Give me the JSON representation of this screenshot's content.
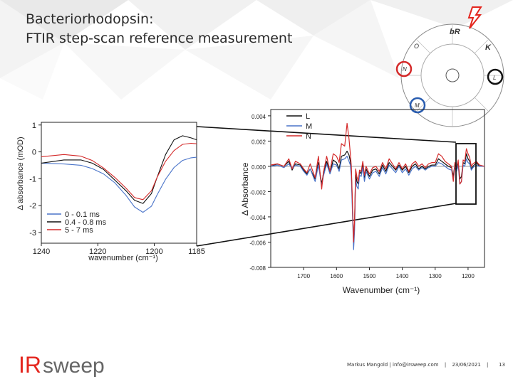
{
  "slide": {
    "title_line1": "Bacteriorhodopsin:",
    "title_line2": "FTIR step-scan reference measurement"
  },
  "footer": {
    "author": "Markus Mangold | info@irsweep.com",
    "sep1": "|",
    "date": "23/06/2021",
    "sep2": "|",
    "page": "13"
  },
  "logo": {
    "ir": "IR",
    "sweep": "sweep",
    "brand_color": "#e4261e"
  },
  "photocycle": {
    "labels": [
      "bR",
      "K",
      "L",
      "M",
      "N",
      "O"
    ],
    "highlight_colors": {
      "N": "#d42a2a",
      "L": "#111111",
      "M": "#2a5db0"
    }
  },
  "colors": {
    "red": "#d42a2a",
    "blue": "#4a74c9",
    "black": "#111111"
  },
  "chart_data": [
    {
      "type": "line",
      "xlabel": "wavenumber (cm⁻¹)",
      "ylabel": "Δ absorbance (mOD)",
      "xlim": [
        1240,
        1185
      ],
      "ylim": [
        -3.4,
        1.1
      ],
      "x_ticks": [
        "1240",
        "1220",
        "1200",
        "1185"
      ],
      "y_ticks": [
        "1",
        "0",
        "-1",
        "-2",
        "-3"
      ],
      "legend_position": "bottom-left",
      "series": [
        {
          "name": "0 - 0.1 ms",
          "color": "#4a74c9",
          "x": [
            1240,
            1232,
            1226,
            1222,
            1218,
            1214,
            1210,
            1207,
            1204,
            1201,
            1199,
            1196,
            1193,
            1190,
            1187,
            1185
          ],
          "y": [
            -0.42,
            -0.45,
            -0.5,
            -0.62,
            -0.82,
            -1.15,
            -1.62,
            -2.05,
            -2.25,
            -2.02,
            -1.6,
            -1.02,
            -0.58,
            -0.32,
            -0.22,
            -0.2
          ]
        },
        {
          "name": "0.4 - 0.8 ms",
          "color": "#111111",
          "x": [
            1240,
            1232,
            1226,
            1222,
            1218,
            1214,
            1210,
            1207,
            1204,
            1201,
            1199,
            1196,
            1193,
            1190,
            1187,
            1185
          ],
          "y": [
            -0.42,
            -0.3,
            -0.3,
            -0.42,
            -0.65,
            -1.05,
            -1.45,
            -1.8,
            -1.92,
            -1.55,
            -0.95,
            -0.1,
            0.45,
            0.6,
            0.52,
            0.45
          ]
        },
        {
          "name": "5 - 7 ms",
          "color": "#d42a2a",
          "x": [
            1240,
            1232,
            1226,
            1222,
            1218,
            1214,
            1210,
            1207,
            1204,
            1201,
            1199,
            1196,
            1193,
            1190,
            1187,
            1185
          ],
          "y": [
            -0.18,
            -0.1,
            -0.16,
            -0.32,
            -0.6,
            -0.95,
            -1.35,
            -1.7,
            -1.78,
            -1.45,
            -0.95,
            -0.35,
            0.05,
            0.28,
            0.32,
            0.3
          ]
        }
      ]
    },
    {
      "type": "line",
      "xlabel": "Wavenumber (cm⁻¹)",
      "ylabel": "Δ  Absorbance",
      "xlim": [
        1800,
        1150
      ],
      "ylim": [
        -0.008,
        0.0045
      ],
      "x_ticks": [
        "1700",
        "1600",
        "1500",
        "1400",
        "1300",
        "1200"
      ],
      "y_ticks": [
        "0.004",
        "0.002",
        "0.000",
        "-0.002",
        "-0.004",
        "-0.006",
        "-0.008"
      ],
      "legend_position": "top-left",
      "series": [
        {
          "name": "L",
          "color": "#111111",
          "x": [
            1800,
            1780,
            1760,
            1745,
            1735,
            1725,
            1710,
            1700,
            1690,
            1680,
            1665,
            1655,
            1645,
            1640,
            1630,
            1620,
            1610,
            1600,
            1592,
            1585,
            1575,
            1568,
            1562,
            1558,
            1555,
            1552,
            1548,
            1545,
            1542,
            1538,
            1534,
            1530,
            1525,
            1520,
            1515,
            1510,
            1500,
            1490,
            1480,
            1470,
            1460,
            1450,
            1440,
            1430,
            1420,
            1410,
            1400,
            1390,
            1380,
            1370,
            1360,
            1350,
            1340,
            1330,
            1320,
            1310,
            1300,
            1290,
            1280,
            1270,
            1260,
            1250,
            1245,
            1240,
            1235,
            1230,
            1225,
            1220,
            1215,
            1210,
            1205,
            1200,
            1195,
            1190,
            1185,
            1175,
            1165,
            1150
          ],
          "y": [
            0,
            0.0002,
            0,
            0.0004,
            -0.0003,
            0.0002,
            0.0001,
            -0.0003,
            -0.0006,
            -0.0002,
            -0.001,
            0.0003,
            -0.0014,
            -0.0006,
            0.0004,
            -0.0005,
            0.0005,
            0.0003,
            -0.0002,
            0.0008,
            0.0009,
            0.0012,
            0.0009,
            0.0004,
            -0.0004,
            -0.0028,
            -0.0062,
            -0.0044,
            -0.0006,
            -0.0012,
            -0.0014,
            -0.0004,
            -0.0006,
            0.0002,
            -0.0009,
            -0.0002,
            -0.0008,
            -0.0003,
            -0.0002,
            -0.0006,
            0.0001,
            -0.0004,
            0.0003,
            0,
            -0.0003,
            0.0001,
            -0.0003,
            0,
            -0.0005,
            0,
            0.0002,
            -0.0002,
            0,
            -0.0002,
            0,
            0.0001,
            0.0001,
            0.0006,
            0.0004,
            0.0002,
            0,
            -0.0001,
            -0.0008,
            0.0002,
            -0.0002,
            0.0003,
            -0.001,
            -0.0008,
            0.0003,
            0.0002,
            0.001,
            0.0006,
            0.0004,
            -0.0002,
            0,
            0.0003,
            0,
            0
          ]
        },
        {
          "name": "M",
          "color": "#4a74c9",
          "x": [
            1800,
            1780,
            1760,
            1745,
            1735,
            1725,
            1710,
            1700,
            1690,
            1680,
            1665,
            1655,
            1645,
            1640,
            1630,
            1620,
            1610,
            1600,
            1592,
            1585,
            1575,
            1568,
            1562,
            1558,
            1555,
            1552,
            1548,
            1545,
            1542,
            1538,
            1534,
            1530,
            1525,
            1520,
            1515,
            1510,
            1500,
            1490,
            1480,
            1470,
            1460,
            1450,
            1440,
            1430,
            1420,
            1410,
            1400,
            1390,
            1380,
            1370,
            1360,
            1350,
            1340,
            1330,
            1320,
            1310,
            1300,
            1290,
            1280,
            1270,
            1260,
            1250,
            1245,
            1240,
            1235,
            1230,
            1225,
            1220,
            1215,
            1210,
            1205,
            1200,
            1195,
            1190,
            1185,
            1175,
            1165,
            1150
          ],
          "y": [
            0,
            0.0001,
            -0.0001,
            0.0002,
            -0.0002,
            0.0001,
            0,
            -0.0004,
            -0.0007,
            -0.0002,
            -0.0012,
            0.0001,
            -0.0016,
            -0.0008,
            0.0002,
            -0.0006,
            0.0002,
            0.0001,
            -0.0004,
            0.0005,
            0.0006,
            0.0008,
            0.0004,
            0.0001,
            -0.0008,
            -0.0034,
            -0.0066,
            -0.005,
            -0.001,
            -0.0016,
            -0.0018,
            -0.0007,
            -0.0008,
            -0.0001,
            -0.0012,
            -0.0004,
            -0.001,
            -0.0005,
            -0.0004,
            -0.0008,
            -0.0001,
            -0.0006,
            0.0001,
            -0.0002,
            -0.0005,
            0,
            -0.0005,
            -0.0002,
            -0.0007,
            -0.0002,
            0,
            -0.0003,
            -0.0001,
            -0.0003,
            -0.0001,
            0,
            0,
            0.0003,
            0.0002,
            0,
            -0.0002,
            -0.0003,
            -0.0011,
            -0.0001,
            -0.0004,
            0.0001,
            -0.0014,
            -0.0012,
            0.0001,
            0,
            0.0006,
            0.0003,
            0.0002,
            -0.0003,
            -0.0001,
            0.0001,
            0,
            0
          ]
        },
        {
          "name": "N",
          "color": "#d42a2a",
          "x": [
            1800,
            1780,
            1760,
            1745,
            1735,
            1725,
            1710,
            1700,
            1690,
            1680,
            1665,
            1655,
            1645,
            1640,
            1630,
            1620,
            1610,
            1600,
            1592,
            1585,
            1575,
            1568,
            1562,
            1558,
            1555,
            1552,
            1548,
            1545,
            1542,
            1538,
            1534,
            1530,
            1525,
            1520,
            1515,
            1510,
            1500,
            1490,
            1480,
            1470,
            1460,
            1450,
            1440,
            1430,
            1420,
            1410,
            1400,
            1390,
            1380,
            1370,
            1360,
            1350,
            1340,
            1330,
            1320,
            1310,
            1300,
            1290,
            1280,
            1270,
            1260,
            1250,
            1245,
            1240,
            1235,
            1230,
            1225,
            1220,
            1215,
            1210,
            1205,
            1200,
            1195,
            1190,
            1185,
            1175,
            1165,
            1150
          ],
          "y": [
            0.0001,
            0.0002,
            0,
            0.0006,
            -0.0002,
            0.0004,
            0.0002,
            -0.0002,
            -0.0005,
            0.0002,
            -0.0009,
            0.0008,
            -0.0018,
            -0.0005,
            0.0008,
            -0.0004,
            0.001,
            0.0008,
            0.0003,
            0.0018,
            0.0016,
            0.0034,
            0.0022,
            0.001,
            0,
            -0.0026,
            -0.006,
            -0.0042,
            -0.0002,
            -0.0008,
            -0.0012,
            -0.0003,
            -0.0004,
            0.0004,
            -0.0007,
            0,
            -0.0006,
            -0.0001,
            0,
            -0.0004,
            0.0003,
            -0.0002,
            0.0006,
            0.0002,
            -0.0002,
            0.0003,
            -0.0002,
            0.0002,
            -0.0004,
            0.0002,
            0.0004,
            0,
            0.0002,
            -0.0001,
            0.0002,
            0.0003,
            0.0003,
            0.001,
            0.0008,
            0.0004,
            0.0002,
            0,
            -0.0012,
            0.0003,
            -0.0001,
            0.0005,
            -0.0014,
            -0.0012,
            0.0005,
            0.0004,
            0.0014,
            0.001,
            0.0007,
            0,
            0.0002,
            0.0004,
            0.0001,
            0
          ]
        }
      ]
    }
  ]
}
